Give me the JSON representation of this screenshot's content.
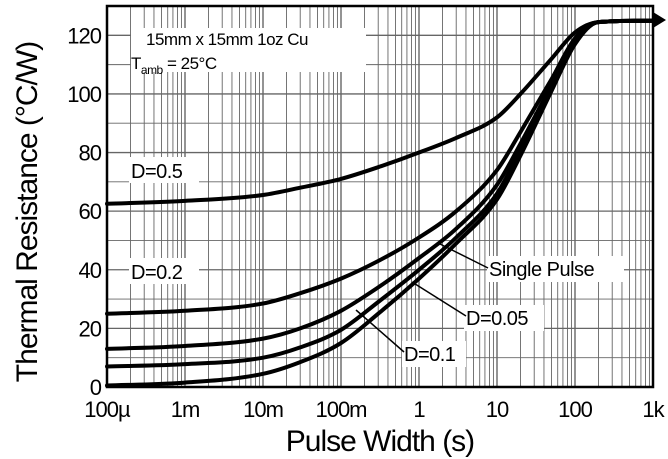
{
  "chart_data": {
    "type": "line",
    "title": "",
    "xlabel": "Pulse Width (s)",
    "ylabel": "Thermal Resistance (°C/W)",
    "x_scale": "log",
    "xlim": [
      0.0001,
      1000
    ],
    "ylim": [
      0,
      130
    ],
    "x_ticks": [
      {
        "value": 0.0001,
        "label": "100µ"
      },
      {
        "value": 0.001,
        "label": "1m"
      },
      {
        "value": 0.01,
        "label": "10m"
      },
      {
        "value": 0.1,
        "label": "100m"
      },
      {
        "value": 1,
        "label": "1"
      },
      {
        "value": 10,
        "label": "10"
      },
      {
        "value": 100,
        "label": "100"
      },
      {
        "value": 1000,
        "label": "1k"
      }
    ],
    "y_ticks": [
      {
        "value": 0,
        "label": "0"
      },
      {
        "value": 20,
        "label": "20"
      },
      {
        "value": 40,
        "label": "40"
      },
      {
        "value": 60,
        "label": "60"
      },
      {
        "value": 80,
        "label": "80"
      },
      {
        "value": 100,
        "label": "100"
      },
      {
        "value": 120,
        "label": "120"
      }
    ],
    "grid": true,
    "annotations": {
      "line1": "15mm x 15mm 1oz Cu",
      "tamb_prefix": "T",
      "tamb_sub": "amb",
      "tamb_suffix": " = 25°C"
    },
    "series": [
      {
        "name": "D=0.5",
        "x": [
          0.0001,
          0.001,
          0.01,
          0.03,
          0.1,
          0.3,
          1,
          3,
          10,
          20,
          50,
          100,
          200,
          1000
        ],
        "y": [
          62.5,
          63.5,
          65.5,
          68,
          71,
          75,
          80,
          85,
          92,
          100,
          112,
          121,
          124.5,
          125
        ]
      },
      {
        "name": "D=0.2",
        "x": [
          0.0001,
          0.001,
          0.01,
          0.03,
          0.1,
          0.3,
          1,
          3,
          10,
          20,
          50,
          100,
          200,
          1000
        ],
        "y": [
          25,
          26,
          28.5,
          32,
          37,
          43,
          51,
          60,
          74,
          87,
          105,
          119,
          124.5,
          125
        ]
      },
      {
        "name": "D=0.1",
        "x": [
          0.0001,
          0.001,
          0.01,
          0.03,
          0.1,
          0.3,
          1,
          3,
          10,
          20,
          50,
          100,
          200,
          1000
        ],
        "y": [
          13,
          14,
          16.5,
          20,
          26,
          34,
          44,
          54,
          69,
          83,
          103,
          118,
          124.5,
          125
        ]
      },
      {
        "name": "D=0.05",
        "x": [
          0.0001,
          0.001,
          0.01,
          0.03,
          0.1,
          0.3,
          1,
          3,
          10,
          20,
          50,
          100,
          200,
          1000
        ],
        "y": [
          7,
          7.8,
          10,
          13.5,
          19.5,
          29,
          40,
          51,
          66,
          81,
          102,
          118,
          124.5,
          125
        ]
      },
      {
        "name": "Single Pulse",
        "x": [
          0.0001,
          0.001,
          0.01,
          0.03,
          0.1,
          0.3,
          1,
          3,
          10,
          20,
          50,
          100,
          200,
          1000
        ],
        "y": [
          0.5,
          1.5,
          4.5,
          8.5,
          15,
          25,
          37,
          49,
          64,
          79,
          101,
          117,
          124.5,
          125
        ]
      }
    ],
    "curve_labels": [
      "D=0.5",
      "D=0.2",
      "D=0.1",
      "D=0.05",
      "Single Pulse"
    ]
  }
}
